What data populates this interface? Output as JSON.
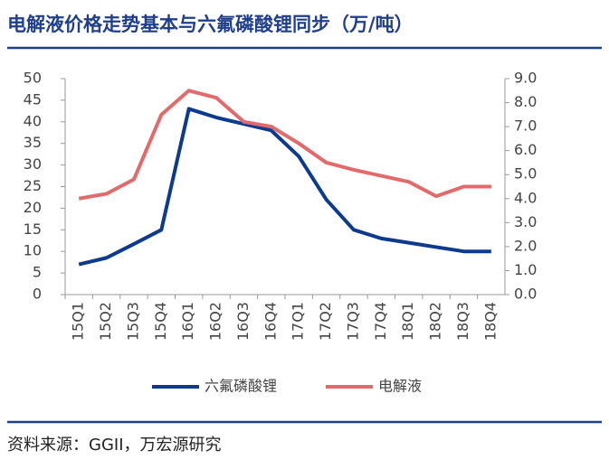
{
  "chart_data": {
    "type": "line",
    "title": "电解液价格走势基本与六氟磷酸锂同步（万/吨）",
    "source": "资料来源：GGII，万宏源研究",
    "categories": [
      "15Q1",
      "15Q2",
      "15Q3",
      "15Q4",
      "16Q1",
      "16Q2",
      "16Q3",
      "16Q4",
      "17Q1",
      "17Q2",
      "17Q3",
      "17Q4",
      "18Q1",
      "18Q2",
      "18Q3",
      "18Q4"
    ],
    "series": [
      {
        "name": "六氟磷酸锂",
        "color": "#0b3a8e",
        "values": [
          7,
          8.5,
          11.7,
          15,
          43,
          41,
          39.5,
          38,
          32,
          22,
          15,
          13,
          12,
          11,
          10,
          10
        ]
      },
      {
        "name": "电解液",
        "color": "#e26a6a",
        "axis": "y2",
        "values": [
          4.0,
          4.2,
          4.8,
          7.5,
          8.5,
          8.2,
          7.2,
          7.0,
          6.3,
          5.5,
          5.2,
          4.95,
          4.7,
          4.1,
          4.5,
          4.5
        ]
      }
    ],
    "ylim": [
      0,
      50
    ],
    "yticks": [
      0,
      5,
      10,
      15,
      20,
      25,
      30,
      35,
      40,
      45,
      50
    ],
    "y2lim": [
      0,
      9
    ],
    "y2ticks": [
      {
        "value": 0,
        "label": "0.0"
      },
      {
        "value": 1,
        "label": "1.0"
      },
      {
        "value": 2,
        "label": "2.0"
      },
      {
        "value": 3,
        "label": "3.0"
      },
      {
        "value": 4,
        "label": "4.0"
      },
      {
        "value": 5,
        "label": "5.0"
      },
      {
        "value": 6,
        "label": "6.0"
      },
      {
        "value": 7,
        "label": "7.0"
      },
      {
        "value": 8,
        "label": "8.0"
      },
      {
        "value": 9,
        "label": "9.0"
      }
    ],
    "legend": "bottom"
  }
}
